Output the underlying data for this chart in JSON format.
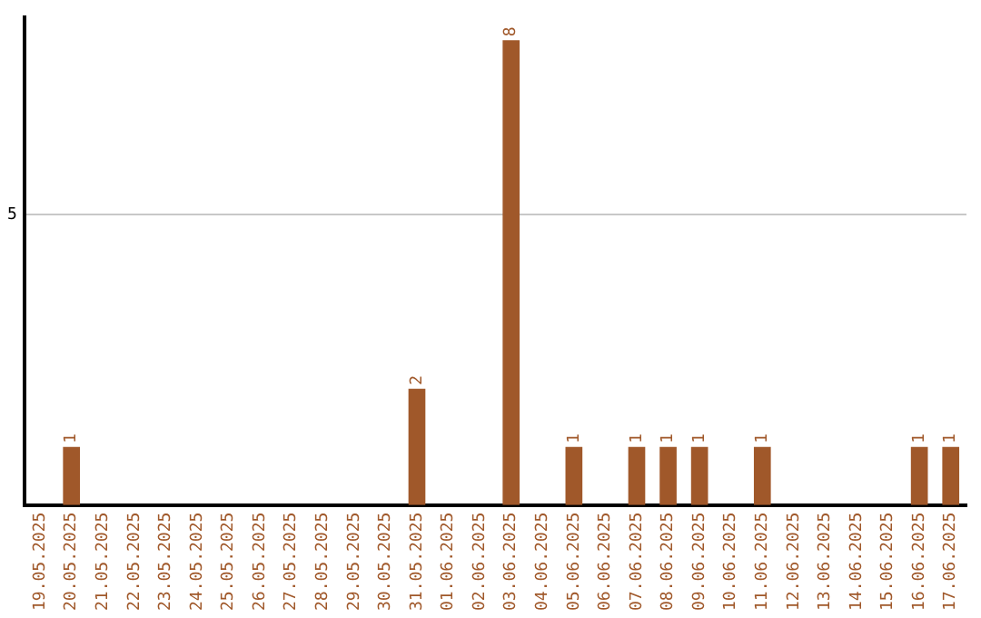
{
  "chart_data": {
    "type": "bar",
    "categories": [
      "19.05.2025",
      "20.05.2025",
      "21.05.2025",
      "22.05.2025",
      "23.05.2025",
      "24.05.2025",
      "25.05.2025",
      "26.05.2025",
      "27.05.2025",
      "28.05.2025",
      "29.05.2025",
      "30.05.2025",
      "31.05.2025",
      "01.06.2025",
      "02.06.2025",
      "03.06.2025",
      "04.06.2025",
      "05.06.2025",
      "06.06.2025",
      "07.06.2025",
      "08.06.2025",
      "09.06.2025",
      "10.06.2025",
      "11.06.2025",
      "12.06.2025",
      "13.06.2025",
      "14.06.2025",
      "15.06.2025",
      "16.06.2025",
      "17.06.2025"
    ],
    "values": [
      0,
      1,
      0,
      0,
      0,
      0,
      0,
      0,
      0,
      0,
      0,
      0,
      2,
      0,
      0,
      8,
      0,
      1,
      0,
      1,
      1,
      1,
      0,
      1,
      0,
      0,
      0,
      0,
      1,
      1
    ],
    "value_labels": [
      null,
      "1",
      null,
      null,
      null,
      null,
      null,
      null,
      null,
      null,
      null,
      null,
      "2",
      null,
      null,
      "8",
      null,
      "1",
      null,
      "1",
      "1",
      "1",
      null,
      "1",
      null,
      null,
      null,
      null,
      "1",
      "1"
    ],
    "color": "#a0582a",
    "ylim": [
      0,
      8.4
    ],
    "yticks": [
      5
    ],
    "grid": "y",
    "legend": false
  }
}
